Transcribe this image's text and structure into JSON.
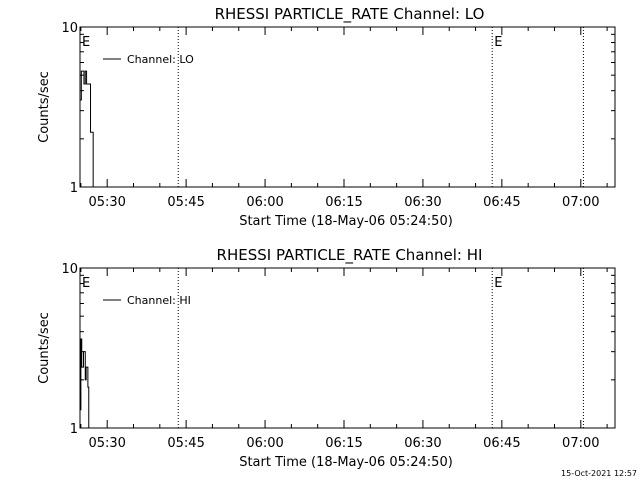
{
  "footer": {
    "timestamp": "15-Oct-2021 12:57"
  },
  "chart_data": [
    {
      "type": "line",
      "title": "RHESSI PARTICLE_RATE Channel: LO",
      "xlabel": "Start Time (18-May-06 05:24:50)",
      "ylabel": "Counts/sec",
      "yscale": "log",
      "ylim": [
        1,
        10
      ],
      "y_tick_labels": [
        "1",
        "10"
      ],
      "xlim": [
        "05:24:50",
        "07:06:30"
      ],
      "x_ticks": [
        "05:30",
        "05:45",
        "06:00",
        "06:15",
        "06:30",
        "06:45",
        "07:00"
      ],
      "legend": {
        "label": "Channel: LO",
        "placement": "top-left"
      },
      "event_markers": [
        {
          "time": "05:24:50",
          "label": "E"
        },
        {
          "time": "05:43:30",
          "label": ""
        },
        {
          "time": "06:43:10",
          "label": "E"
        },
        {
          "time": "07:00:30",
          "label": ""
        }
      ],
      "series": [
        {
          "name": "Channel: LO",
          "points": [
            [
              "05:24:50",
              3.5
            ],
            [
              "05:25:05",
              5.3
            ],
            [
              "05:25:20",
              5.3
            ],
            [
              "05:25:35",
              4.4
            ],
            [
              "05:25:50",
              5.3
            ],
            [
              "05:26:05",
              4.4
            ],
            [
              "05:26:20",
              4.4
            ],
            [
              "05:26:35",
              4.4
            ],
            [
              "05:26:50",
              2.2
            ],
            [
              "05:27:05",
              2.2
            ],
            [
              "05:27:20",
              1.0
            ]
          ]
        }
      ]
    },
    {
      "type": "line",
      "title": "RHESSI PARTICLE_RATE Channel: HI",
      "xlabel": "Start Time (18-May-06 05:24:50)",
      "ylabel": "Counts/sec",
      "yscale": "log",
      "ylim": [
        1,
        10
      ],
      "y_tick_labels": [
        "1",
        "10"
      ],
      "xlim": [
        "05:24:50",
        "07:06:30"
      ],
      "x_ticks": [
        "05:30",
        "05:45",
        "06:00",
        "06:15",
        "06:30",
        "06:45",
        "07:00"
      ],
      "legend": {
        "label": "Channel: HI",
        "placement": "top-left"
      },
      "event_markers": [
        {
          "time": "05:24:50",
          "label": "E"
        },
        {
          "time": "05:43:30",
          "label": ""
        },
        {
          "time": "06:43:10",
          "label": "E"
        },
        {
          "time": "07:00:30",
          "label": ""
        }
      ],
      "series": [
        {
          "name": "Channel: HI",
          "points": [
            [
              "05:24:50",
              1.3
            ],
            [
              "05:25:00",
              3.6
            ],
            [
              "05:25:10",
              2.4
            ],
            [
              "05:25:20",
              2.4
            ],
            [
              "05:25:30",
              3.0
            ],
            [
              "05:25:40",
              3.0
            ],
            [
              "05:25:50",
              2.0
            ],
            [
              "05:26:00",
              2.4
            ],
            [
              "05:26:10",
              2.4
            ],
            [
              "05:26:20",
              1.8
            ],
            [
              "05:26:30",
              1.0
            ]
          ]
        }
      ]
    }
  ]
}
